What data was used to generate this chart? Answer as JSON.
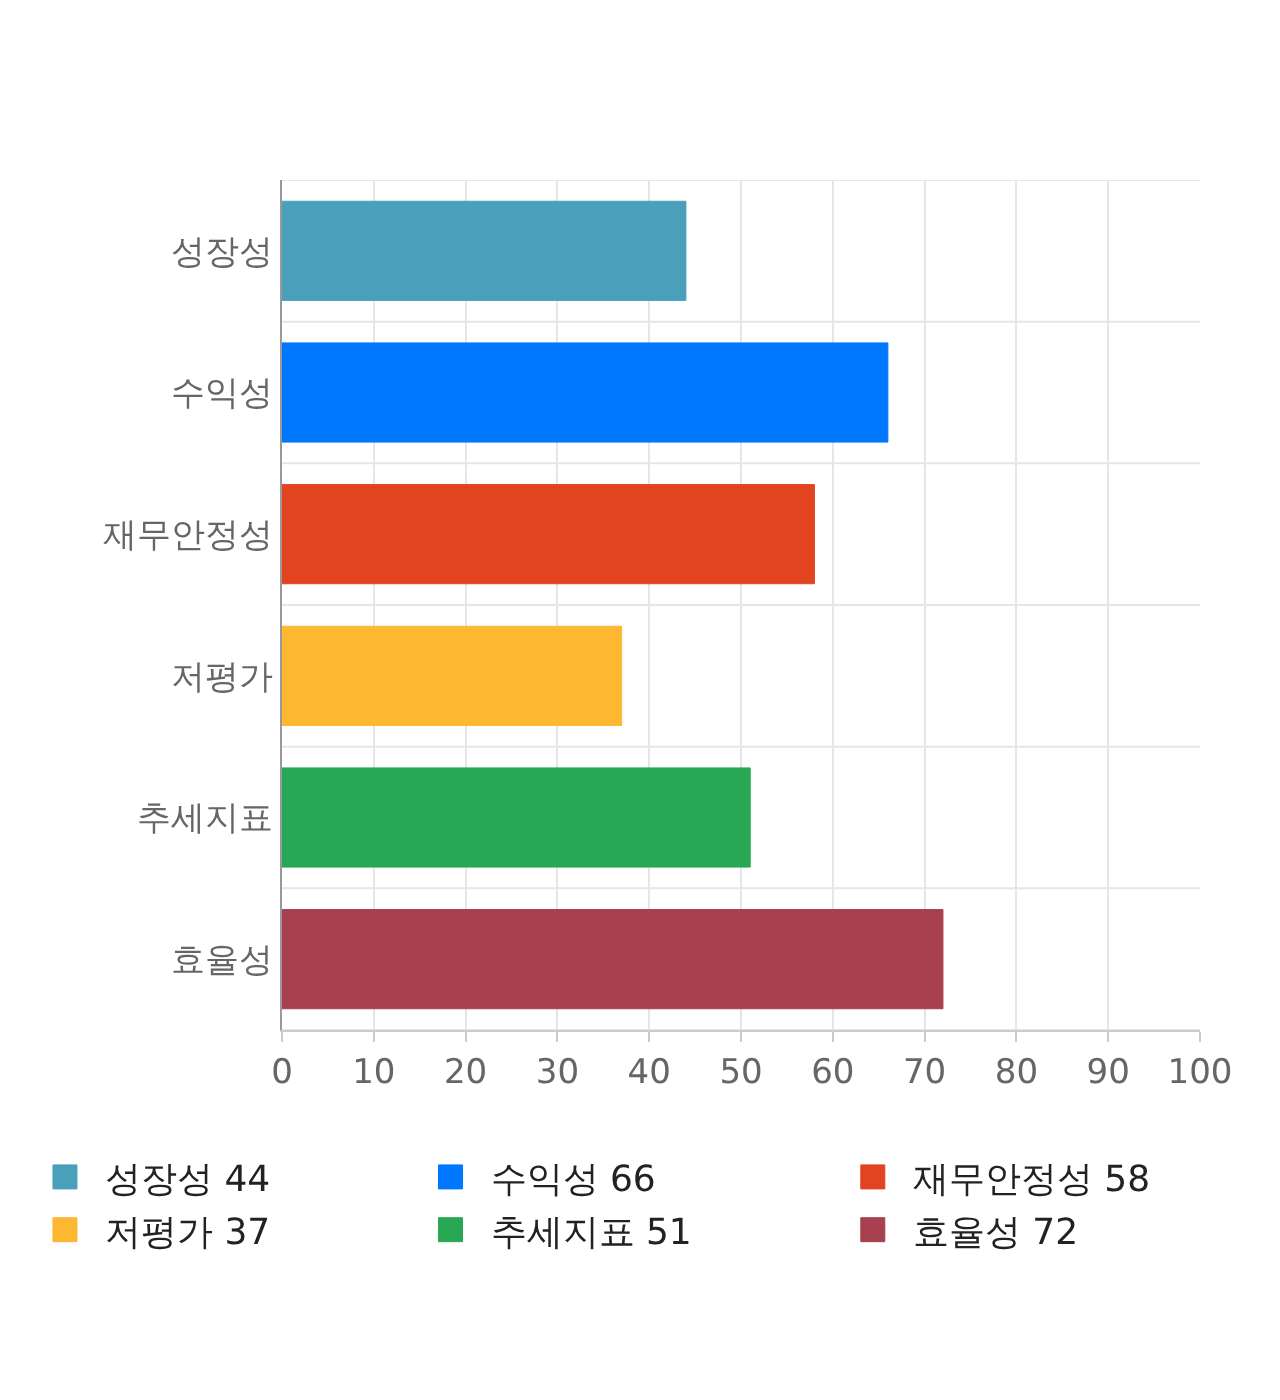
{
  "chart_data": {
    "type": "bar",
    "orientation": "horizontal",
    "categories": [
      "성장성",
      "수익성",
      "재무안정성",
      "저평가",
      "추세지표",
      "효율성"
    ],
    "series": [
      {
        "name": "성장성 44",
        "color": "#4aa0bb",
        "values": [
          44,
          null,
          null,
          null,
          null,
          null
        ]
      },
      {
        "name": "수익성 66",
        "color": "#0077ff",
        "values": [
          null,
          66,
          null,
          null,
          null,
          null
        ]
      },
      {
        "name": "재무안정성 58",
        "color": "#e24422",
        "values": [
          null,
          null,
          58,
          null,
          null,
          null
        ]
      },
      {
        "name": "저평가 37",
        "color": "#fdb730",
        "values": [
          null,
          null,
          null,
          37,
          null,
          null
        ]
      },
      {
        "name": "추세지표 51",
        "color": "#28a754",
        "values": [
          null,
          null,
          null,
          null,
          51,
          null
        ]
      },
      {
        "name": "효율성 72",
        "color": "#a7414f",
        "values": [
          null,
          null,
          null,
          null,
          null,
          72
        ]
      }
    ],
    "xlim": [
      0,
      100
    ],
    "xticks": [
      0,
      10,
      20,
      30,
      40,
      50,
      60,
      70,
      80,
      90,
      100
    ],
    "grid": true,
    "legend": "bottom"
  }
}
